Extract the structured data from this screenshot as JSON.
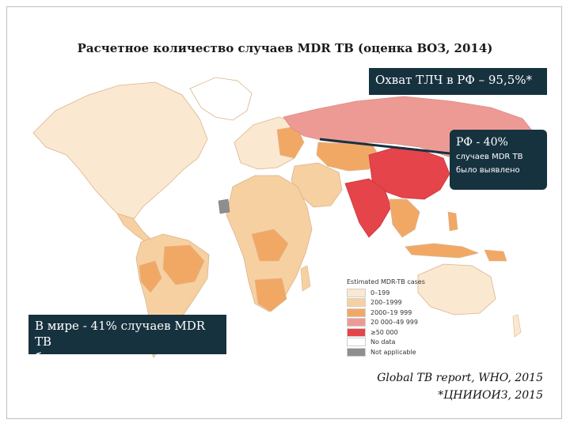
{
  "title": "Расчетное количество случаев MDR TB (оценка ВОЗ, 2014)",
  "callouts": {
    "coverage": "Охват ТЛЧ в РФ – 95,5%*",
    "russia_main": "РФ - 40%",
    "russia_sub1": "случаев MDR TB",
    "russia_sub2": "было выявлено",
    "world_line1": "В мире - 41% случаев MDR TB",
    "world_line2": "было выявлено"
  },
  "legend": {
    "title": "Estimated MDR-TB cases",
    "items": [
      {
        "label": "0–199",
        "color": "#fbe8d0"
      },
      {
        "label": "200–1999",
        "color": "#f7d0a2"
      },
      {
        "label": "2000–19 999",
        "color": "#f2a865"
      },
      {
        "label": "20 000–49 999",
        "color": "#ee9a94"
      },
      {
        "label": "≥50 000",
        "color": "#e5444a"
      },
      {
        "label": "No data",
        "color": "#ffffff"
      },
      {
        "label": "Not applicable",
        "color": "#8e8e8e"
      }
    ]
  },
  "sources": {
    "line1": "Global TB report, WHO, 2015",
    "line2": "*ЦНИИОИЗ, 2015"
  },
  "colors": {
    "callout_bg": "#17323f",
    "land_low": "#fbe8d0",
    "land_mid": "#f7d0a2",
    "land_high": "#f2a865",
    "russia": "#ee9a94",
    "china_india": "#e5444a"
  }
}
